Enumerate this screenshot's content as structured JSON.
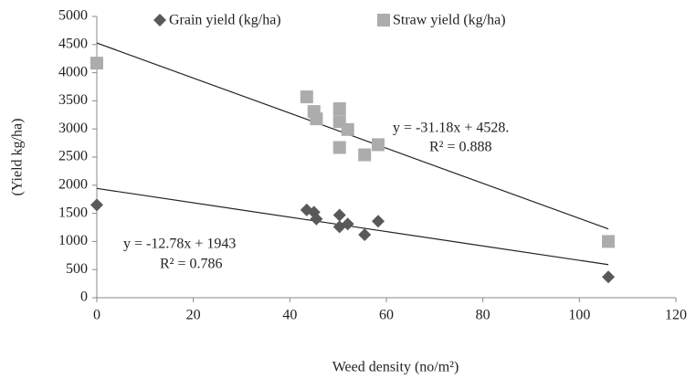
{
  "chart_data": {
    "type": "scatter",
    "xlabel": "Weed density (no/m²)",
    "ylabel": "(Yield kg/ha)",
    "xlim": [
      0,
      120
    ],
    "xticks": [
      0,
      20,
      40,
      60,
      80,
      100,
      120
    ],
    "ylim": [
      0,
      5000
    ],
    "yticks": [
      0,
      500,
      1000,
      1500,
      2000,
      2500,
      3000,
      3500,
      4000,
      4500,
      5000
    ],
    "grid": false,
    "series": [
      {
        "name": "Grain yield (kg/ha)",
        "color": "#595959",
        "marker": "diamond",
        "x": [
          0,
          43.5,
          45,
          45.5,
          50.3,
          50.3,
          52,
          55.5,
          58.3,
          106
        ],
        "values": [
          1650,
          1560,
          1520,
          1400,
          1470,
          1260,
          1310,
          1120,
          1360,
          370
        ],
        "trendline": {
          "x": [
            0,
            106
          ],
          "values": [
            1943,
            588
          ],
          "equation": "y = -12.78x + 1943",
          "r2": "R² = 0.786"
        }
      },
      {
        "name": "Straw yield (kg/ha)",
        "color": "#acacac",
        "marker": "square",
        "x": [
          0,
          43.5,
          45,
          45.5,
          50.3,
          50.3,
          50.3,
          52,
          55.5,
          58.3,
          106
        ],
        "values": [
          4170,
          3570,
          3310,
          3180,
          3360,
          3130,
          2670,
          2990,
          2540,
          2720,
          1000
        ],
        "trendline": {
          "x": [
            0,
            106
          ],
          "values": [
            4528,
            1223
          ],
          "equation": "y = -31.18x + 4528.",
          "r2": "R² = 0.888"
        }
      }
    ]
  }
}
